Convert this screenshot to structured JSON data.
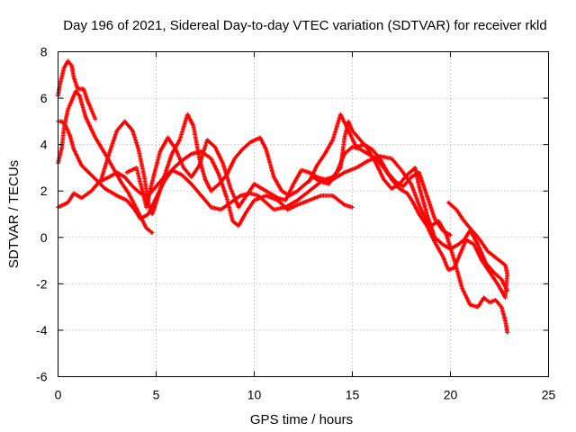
{
  "chart_data": {
    "type": "scatter",
    "title": "Day 196 of 2021, Sidereal Day-to-day VTEC variation (SDTVAR) for receiver rkld",
    "xlabel": "GPS time / hours",
    "ylabel": "SDTVAR / TECUs",
    "xlim": [
      0,
      25
    ],
    "ylim": [
      -6,
      8
    ],
    "xticks": [
      0,
      5,
      10,
      15,
      20,
      25
    ],
    "yticks": [
      -6,
      -4,
      -2,
      0,
      2,
      4,
      6,
      8
    ],
    "grid": true,
    "marker": "+",
    "color": "#ff0000",
    "series": [
      {
        "name": "trace-1",
        "points": [
          [
            0,
            6.1
          ],
          [
            0.1,
            6.6
          ],
          [
            0.3,
            7.3
          ],
          [
            0.5,
            7.6
          ],
          [
            0.7,
            7.4
          ],
          [
            0.8,
            6.9
          ],
          [
            1.0,
            6.4
          ],
          [
            1.3,
            6.4
          ],
          [
            1.5,
            5.9
          ],
          [
            1.9,
            5.1
          ]
        ]
      },
      {
        "name": "trace-2",
        "points": [
          [
            0,
            3.2
          ],
          [
            0.2,
            3.9
          ],
          [
            0.3,
            4.7
          ],
          [
            0.5,
            5.5
          ],
          [
            0.7,
            5.9
          ],
          [
            0.9,
            6.3
          ],
          [
            1.1,
            6.1
          ],
          [
            1.4,
            5.2
          ],
          [
            1.9,
            4.3
          ],
          [
            2.4,
            3.6
          ],
          [
            2.8,
            3.0
          ],
          [
            3.2,
            2.4
          ],
          [
            3.6,
            1.9
          ],
          [
            3.9,
            1.4
          ],
          [
            4.2,
            0.9
          ],
          [
            4.5,
            0.4
          ],
          [
            4.8,
            0.2
          ]
        ]
      },
      {
        "name": "trace-3",
        "points": [
          [
            0,
            5.0
          ],
          [
            0.2,
            5.0
          ],
          [
            0.4,
            4.8
          ],
          [
            0.6,
            4.4
          ],
          [
            0.8,
            3.8
          ],
          [
            1.2,
            3.1
          ],
          [
            1.8,
            2.6
          ],
          [
            2.4,
            2.1
          ],
          [
            3.0,
            1.8
          ],
          [
            3.5,
            1.6
          ],
          [
            3.9,
            1.2
          ],
          [
            4.2,
            0.8
          ],
          [
            4.6,
            1.0
          ],
          [
            5.0,
            1.7
          ],
          [
            5.4,
            2.4
          ],
          [
            5.9,
            3.0
          ],
          [
            6.3,
            3.3
          ],
          [
            6.8,
            3.6
          ],
          [
            7.3,
            3.7
          ],
          [
            7.8,
            3.4
          ],
          [
            8.2,
            2.7
          ],
          [
            8.6,
            1.7
          ],
          [
            8.9,
            0.7
          ],
          [
            9.2,
            0.5
          ],
          [
            9.6,
            1.1
          ],
          [
            10.0,
            1.6
          ],
          [
            10.6,
            1.8
          ],
          [
            11.2,
            1.6
          ],
          [
            11.7,
            1.2
          ],
          [
            12.2,
            1.4
          ],
          [
            12.8,
            1.6
          ],
          [
            13.4,
            1.8
          ],
          [
            14.0,
            1.8
          ],
          [
            14.6,
            1.4
          ],
          [
            15.0,
            1.3
          ]
        ]
      },
      {
        "name": "trace-4",
        "points": [
          [
            0,
            1.3
          ],
          [
            0.5,
            1.5
          ],
          [
            0.8,
            1.9
          ],
          [
            1.2,
            1.7
          ],
          [
            1.7,
            2.0
          ],
          [
            2.1,
            2.4
          ],
          [
            2.6,
            2.6
          ],
          [
            3.0,
            2.8
          ],
          [
            3.4,
            2.6
          ],
          [
            3.8,
            2.2
          ],
          [
            4.2,
            1.9
          ],
          [
            4.6,
            1.8
          ],
          [
            5.0,
            2.2
          ],
          [
            5.4,
            2.6
          ],
          [
            5.8,
            2.9
          ],
          [
            6.3,
            2.7
          ],
          [
            6.8,
            2.3
          ],
          [
            7.3,
            1.8
          ],
          [
            7.8,
            1.3
          ],
          [
            8.3,
            1.2
          ],
          [
            8.8,
            1.5
          ],
          [
            9.3,
            1.8
          ],
          [
            9.8,
            1.9
          ],
          [
            10.2,
            1.8
          ],
          [
            10.6,
            1.5
          ],
          [
            11.0,
            1.2
          ],
          [
            11.6,
            1.3
          ],
          [
            12.2,
            1.6
          ],
          [
            12.8,
            2.0
          ],
          [
            13.4,
            2.4
          ],
          [
            14.0,
            2.5
          ],
          [
            14.6,
            2.8
          ],
          [
            15.2,
            3.0
          ],
          [
            15.8,
            3.3
          ],
          [
            16.4,
            3.5
          ],
          [
            17.0,
            3.4
          ],
          [
            17.5,
            2.9
          ],
          [
            18.0,
            2.3
          ],
          [
            18.4,
            1.4
          ],
          [
            18.7,
            0.8
          ],
          [
            19.0,
            0.5
          ],
          [
            19.4,
            0.7
          ],
          [
            19.8,
            0.1
          ],
          [
            20.2,
            -1.0
          ],
          [
            20.6,
            -2.2
          ],
          [
            21.0,
            -2.9
          ],
          [
            21.4,
            -3.0
          ],
          [
            21.7,
            -2.6
          ],
          [
            22.0,
            -2.8
          ],
          [
            22.3,
            -2.7
          ],
          [
            22.6,
            -3.0
          ],
          [
            22.8,
            -3.6
          ],
          [
            22.9,
            -4.1
          ]
        ]
      },
      {
        "name": "trace-5",
        "points": [
          [
            2.2,
            2.5
          ],
          [
            2.6,
            3.6
          ],
          [
            3.0,
            4.6
          ],
          [
            3.4,
            5.0
          ],
          [
            3.8,
            4.6
          ],
          [
            4.1,
            3.8
          ],
          [
            4.4,
            2.6
          ],
          [
            4.6,
            1.5
          ],
          [
            4.8,
            1.0
          ],
          [
            5.0,
            1.5
          ],
          [
            5.4,
            2.6
          ],
          [
            5.8,
            3.6
          ],
          [
            6.2,
            4.2
          ],
          [
            6.6,
            5.3
          ],
          [
            6.9,
            4.8
          ],
          [
            7.2,
            3.4
          ],
          [
            7.5,
            2.5
          ],
          [
            7.8,
            2.0
          ],
          [
            8.2,
            2.3
          ],
          [
            8.6,
            2.7
          ],
          [
            9.0,
            3.4
          ],
          [
            9.4,
            3.8
          ],
          [
            9.8,
            4.1
          ],
          [
            10.3,
            4.3
          ],
          [
            10.6,
            3.8
          ],
          [
            11.0,
            2.6
          ],
          [
            11.4,
            2.0
          ],
          [
            11.8,
            1.8
          ],
          [
            12.2,
            2.0
          ],
          [
            12.6,
            2.3
          ],
          [
            13.0,
            2.6
          ],
          [
            13.4,
            2.4
          ],
          [
            13.8,
            2.3
          ],
          [
            14.2,
            2.8
          ],
          [
            14.6,
            3.6
          ],
          [
            15.0,
            3.9
          ],
          [
            15.4,
            3.8
          ],
          [
            15.8,
            3.6
          ],
          [
            16.2,
            3.4
          ],
          [
            16.6,
            3.0
          ],
          [
            17.0,
            2.5
          ],
          [
            17.4,
            2.1
          ],
          [
            17.8,
            1.9
          ],
          [
            18.1,
            1.5
          ],
          [
            18.4,
            1.0
          ],
          [
            18.8,
            0.5
          ],
          [
            19.2,
            -0.2
          ],
          [
            19.6,
            -0.8
          ],
          [
            19.9,
            -1.4
          ],
          [
            20.2,
            -1.3
          ],
          [
            20.5,
            -0.7
          ],
          [
            20.8,
            -0.1
          ],
          [
            21.2,
            -0.3
          ],
          [
            21.6,
            -1.0
          ],
          [
            22.0,
            -1.5
          ],
          [
            22.4,
            -2.0
          ],
          [
            22.8,
            -2.6
          ]
        ]
      },
      {
        "name": "trace-6",
        "points": [
          [
            3.5,
            2.8
          ],
          [
            4.0,
            3.0
          ],
          [
            4.3,
            2.0
          ],
          [
            4.5,
            1.3
          ],
          [
            4.8,
            2.4
          ],
          [
            5.2,
            3.7
          ],
          [
            5.6,
            4.3
          ],
          [
            6.0,
            3.8
          ],
          [
            6.4,
            3.0
          ],
          [
            6.8,
            2.6
          ],
          [
            7.2,
            3.1
          ],
          [
            7.6,
            4.2
          ],
          [
            8.0,
            3.9
          ],
          [
            8.4,
            3.2
          ],
          [
            8.8,
            2.1
          ],
          [
            9.2,
            1.3
          ],
          [
            9.6,
            1.8
          ],
          [
            10.0,
            2.3
          ],
          [
            10.4,
            2.1
          ],
          [
            10.8,
            1.9
          ],
          [
            11.2,
            1.7
          ],
          [
            11.6,
            1.6
          ],
          [
            12.0,
            2.3
          ],
          [
            12.4,
            2.9
          ],
          [
            12.8,
            2.8
          ],
          [
            13.2,
            2.6
          ],
          [
            13.6,
            2.5
          ],
          [
            14.0,
            2.6
          ],
          [
            14.4,
            3.0
          ],
          [
            14.6,
            4.3
          ],
          [
            14.8,
            5.0
          ],
          [
            15.0,
            4.6
          ],
          [
            15.4,
            4.2
          ],
          [
            15.8,
            3.8
          ],
          [
            16.2,
            3.2
          ],
          [
            16.6,
            2.5
          ],
          [
            17.0,
            2.1
          ],
          [
            17.4,
            2.3
          ],
          [
            17.8,
            2.7
          ],
          [
            18.2,
            3.0
          ],
          [
            18.4,
            2.2
          ],
          [
            18.6,
            1.6
          ],
          [
            18.8,
            1.0
          ],
          [
            19.0,
            0.5
          ],
          [
            19.2,
            0.0
          ],
          [
            19.6,
            -0.3
          ],
          [
            20.0,
            -0.5
          ],
          [
            20.4,
            -0.3
          ],
          [
            20.7,
            -0.1
          ],
          [
            21.0,
            0.3
          ],
          [
            21.4,
            -0.3
          ],
          [
            21.8,
            -1.1
          ],
          [
            22.2,
            -1.5
          ],
          [
            22.6,
            -1.8
          ],
          [
            22.9,
            -2.3
          ]
        ]
      },
      {
        "name": "trace-7",
        "points": [
          [
            12.8,
            2.4
          ],
          [
            13.2,
            3.1
          ],
          [
            13.6,
            3.6
          ],
          [
            14.0,
            4.2
          ],
          [
            14.4,
            5.3
          ],
          [
            14.8,
            4.6
          ],
          [
            15.2,
            3.9
          ],
          [
            15.6,
            4.0
          ],
          [
            16.0,
            3.8
          ],
          [
            16.4,
            3.4
          ],
          [
            16.8,
            2.8
          ],
          [
            17.2,
            2.4
          ],
          [
            17.6,
            2.2
          ],
          [
            18.0,
            2.6
          ],
          [
            18.4,
            2.8
          ],
          [
            18.8,
            1.8
          ],
          [
            19.2,
            0.8
          ],
          [
            19.6,
            0.3
          ],
          [
            20.0,
            0.1
          ]
        ]
      },
      {
        "name": "trace-8",
        "points": [
          [
            19.9,
            1.5
          ],
          [
            20.3,
            1.2
          ],
          [
            20.7,
            0.7
          ],
          [
            21.1,
            0.3
          ],
          [
            21.5,
            -0.1
          ],
          [
            21.9,
            -0.6
          ],
          [
            22.2,
            -0.8
          ],
          [
            22.5,
            -1.0
          ],
          [
            22.8,
            -1.2
          ],
          [
            22.9,
            -1.6
          ],
          [
            22.8,
            -2.5
          ]
        ]
      }
    ]
  }
}
